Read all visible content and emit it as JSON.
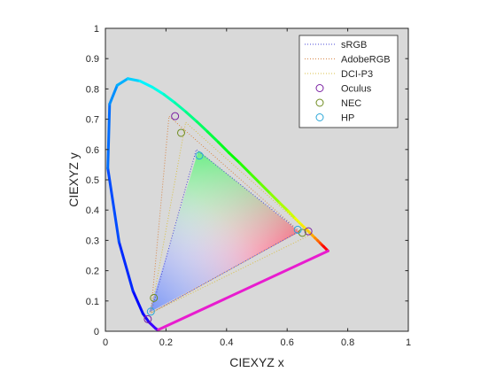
{
  "chart_data": {
    "type": "scatter",
    "title": "",
    "xlabel": "CIEXYZ x",
    "ylabel": "CIEXYZ y",
    "xlim": [
      0,
      1
    ],
    "ylim": [
      0,
      1
    ],
    "xticks": [
      "0",
      "0.2",
      "0.4",
      "0.6",
      "0.8",
      "1"
    ],
    "yticks": [
      "0",
      "0.1",
      "0.2",
      "0.3",
      "0.4",
      "0.5",
      "0.6",
      "0.7",
      "0.8",
      "0.9",
      "1"
    ],
    "x_tick_values": [
      0,
      0.2,
      0.4,
      0.6,
      0.8,
      1
    ],
    "y_tick_values": [
      0,
      0.1,
      0.2,
      0.3,
      0.4,
      0.5,
      0.6,
      0.7,
      0.8,
      0.9,
      1
    ],
    "grid": false,
    "legend_position": "top-right",
    "background_color": "#d9d9d9",
    "spectral_locus": [
      [
        0.175,
        0.005
      ],
      [
        0.172,
        0.005
      ],
      [
        0.166,
        0.009
      ],
      [
        0.144,
        0.03
      ],
      [
        0.124,
        0.058
      ],
      [
        0.091,
        0.133
      ],
      [
        0.045,
        0.295
      ],
      [
        0.008,
        0.538
      ],
      [
        0.014,
        0.75
      ],
      [
        0.039,
        0.812
      ],
      [
        0.074,
        0.834
      ],
      [
        0.114,
        0.826
      ],
      [
        0.155,
        0.806
      ],
      [
        0.193,
        0.782
      ],
      [
        0.23,
        0.754
      ],
      [
        0.266,
        0.724
      ],
      [
        0.302,
        0.692
      ],
      [
        0.337,
        0.659
      ],
      [
        0.373,
        0.624
      ],
      [
        0.408,
        0.589
      ],
      [
        0.444,
        0.555
      ],
      [
        0.479,
        0.52
      ],
      [
        0.512,
        0.487
      ],
      [
        0.545,
        0.454
      ],
      [
        0.575,
        0.424
      ],
      [
        0.603,
        0.397
      ],
      [
        0.627,
        0.372
      ],
      [
        0.648,
        0.351
      ],
      [
        0.666,
        0.334
      ],
      [
        0.68,
        0.32
      ],
      [
        0.692,
        0.308
      ],
      [
        0.701,
        0.299
      ],
      [
        0.709,
        0.291
      ],
      [
        0.715,
        0.285
      ],
      [
        0.72,
        0.28
      ],
      [
        0.735,
        0.265
      ]
    ],
    "series": [
      {
        "name": "sRGB",
        "style": "dotted",
        "color": "#4a4ad8",
        "points": [
          [
            0.64,
            0.33
          ],
          [
            0.3,
            0.6
          ],
          [
            0.15,
            0.06
          ]
        ]
      },
      {
        "name": "AdobeRGB",
        "style": "dotted",
        "color": "#d8884a",
        "points": [
          [
            0.64,
            0.33
          ],
          [
            0.21,
            0.71
          ],
          [
            0.15,
            0.06
          ]
        ]
      },
      {
        "name": "DCI-P3",
        "style": "dotted",
        "color": "#d8c04a",
        "points": [
          [
            0.68,
            0.32
          ],
          [
            0.265,
            0.69
          ],
          [
            0.15,
            0.06
          ]
        ]
      },
      {
        "name": "Oculus",
        "style": "marker",
        "color": "#7a1fa2",
        "points": [
          [
            0.67,
            0.33
          ],
          [
            0.23,
            0.71
          ],
          [
            0.14,
            0.04
          ]
        ]
      },
      {
        "name": "NEC",
        "style": "marker",
        "color": "#6e8b1e",
        "points": [
          [
            0.65,
            0.325
          ],
          [
            0.25,
            0.655
          ],
          [
            0.16,
            0.11
          ]
        ]
      },
      {
        "name": "HP",
        "style": "marker",
        "color": "#2aa7d8",
        "points": [
          [
            0.635,
            0.335
          ],
          [
            0.31,
            0.58
          ],
          [
            0.15,
            0.065
          ]
        ]
      }
    ]
  }
}
